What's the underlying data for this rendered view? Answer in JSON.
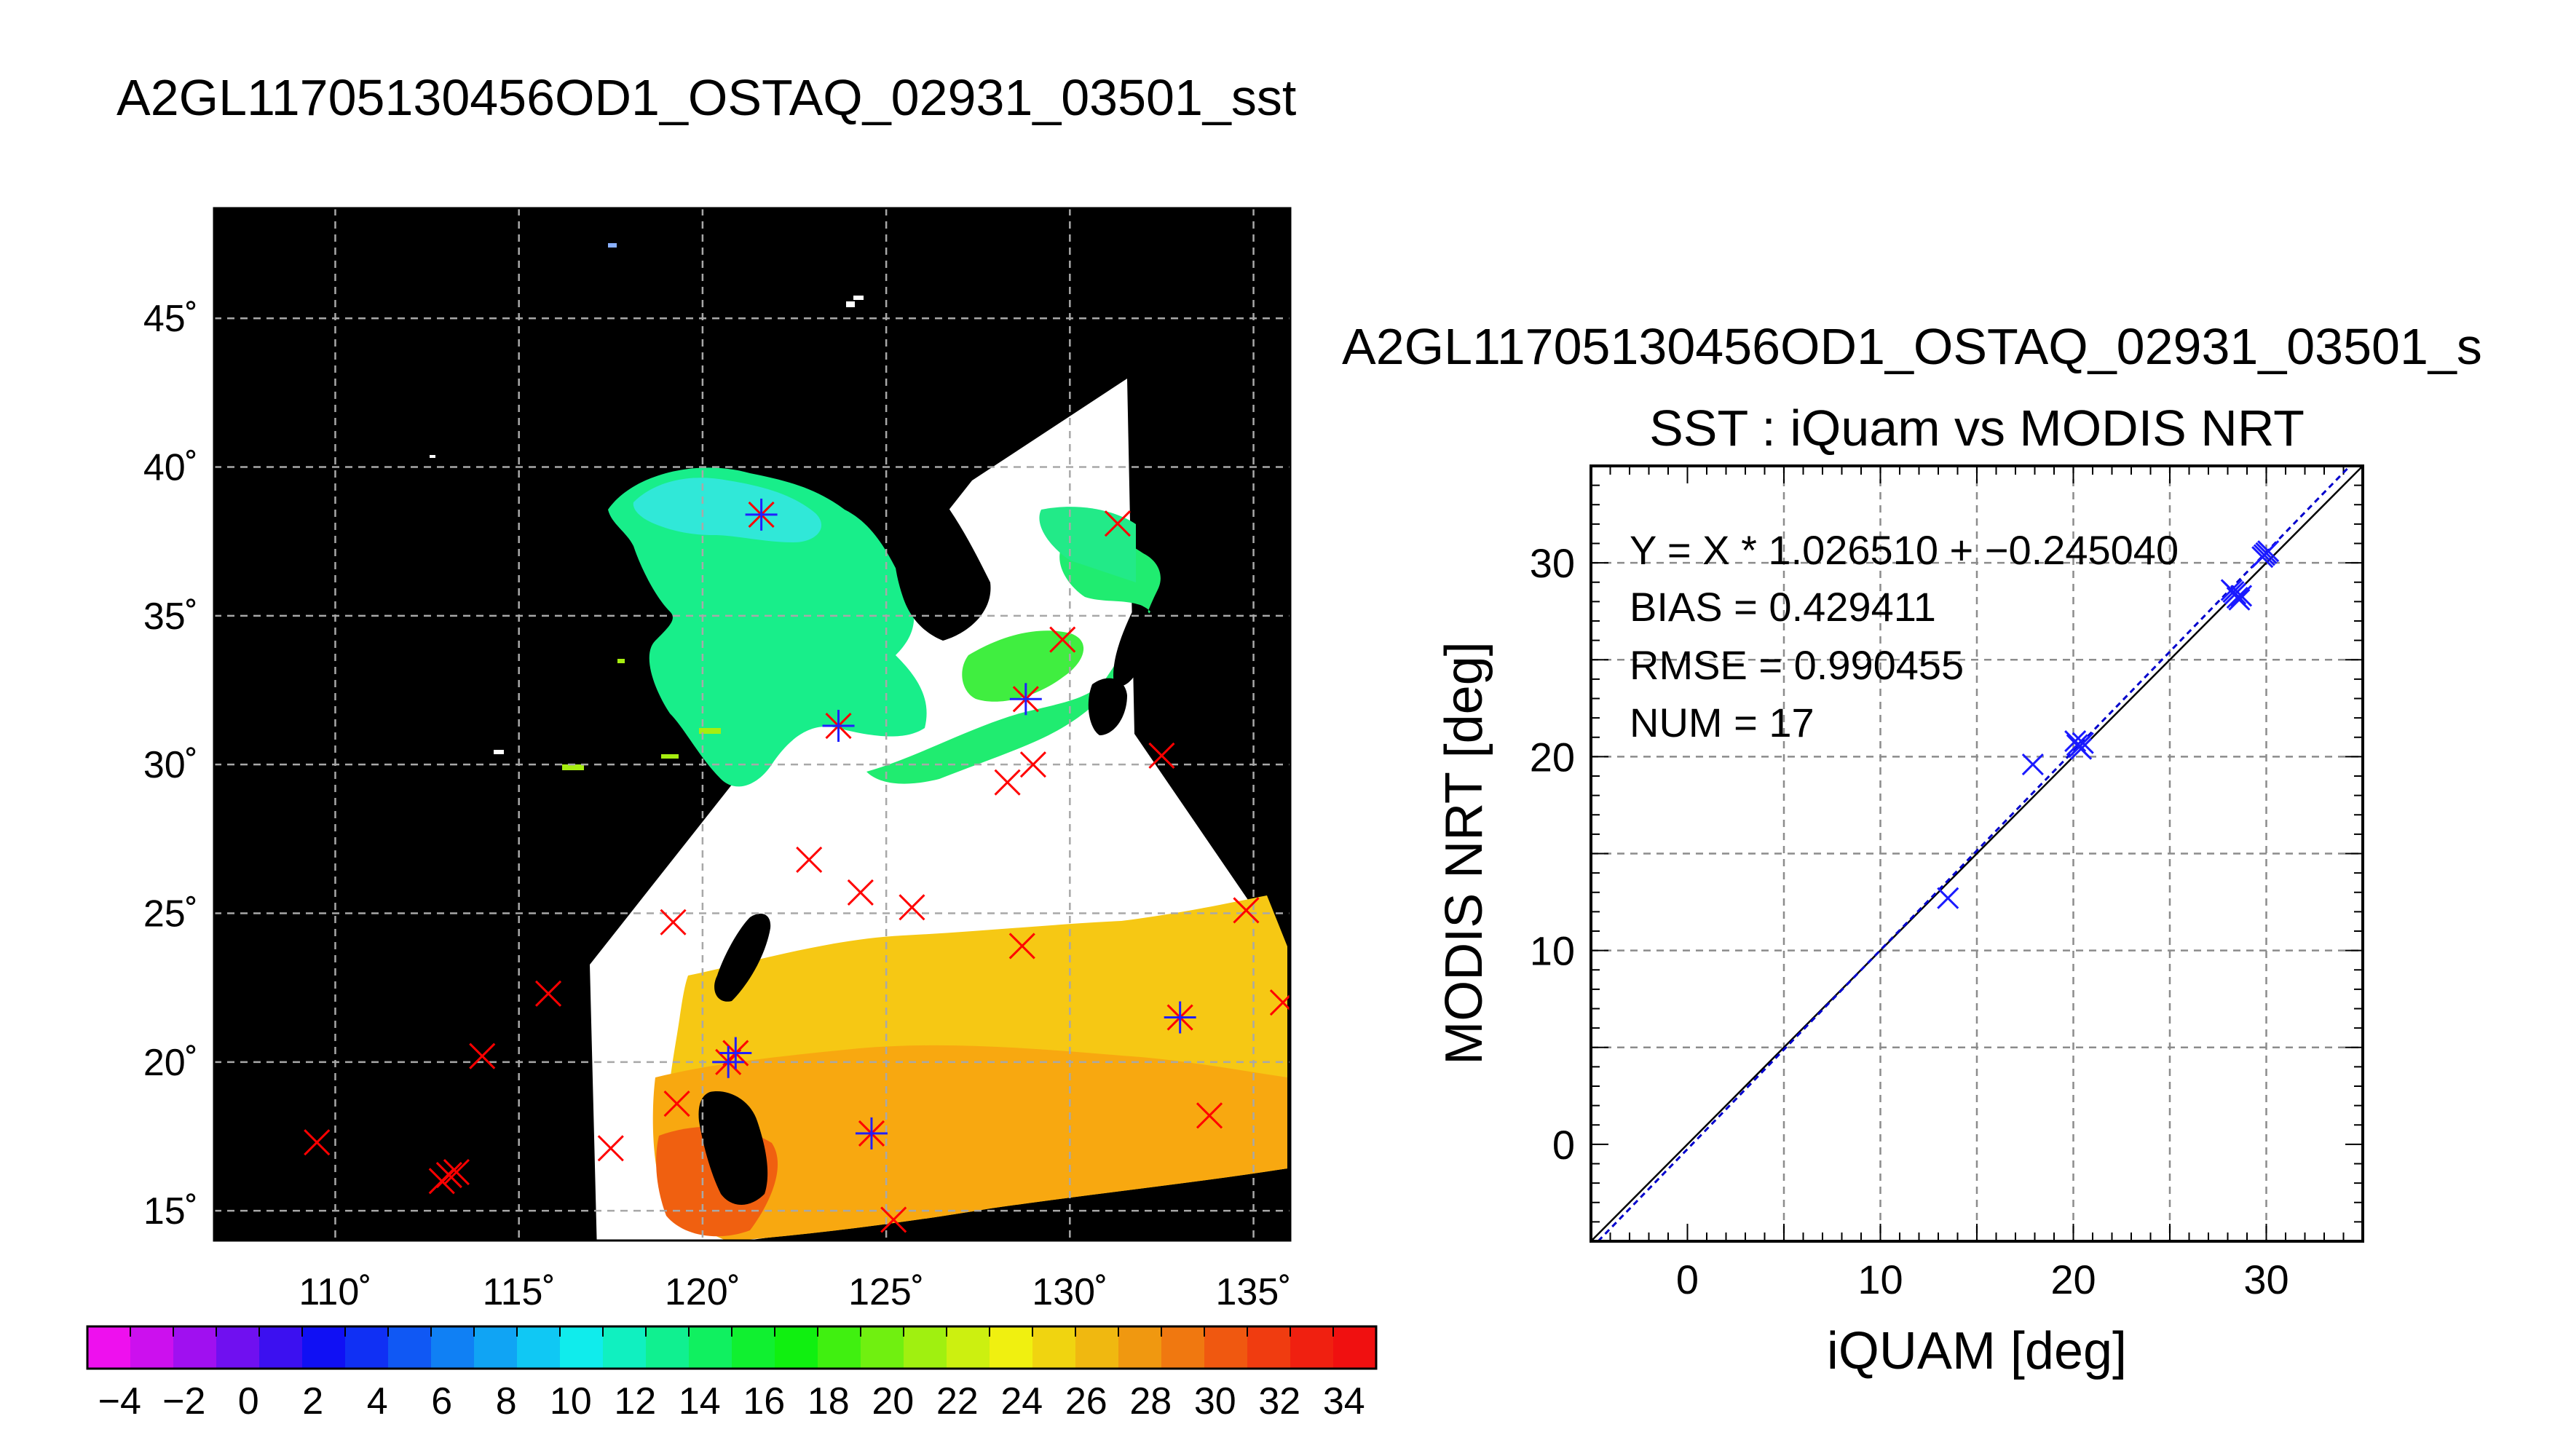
{
  "chart_data": [
    {
      "type": "map",
      "title": "A2GL11705130456OD1_OSTAQ_02931_03501_sst",
      "x_ticks": [
        {
          "value": 110,
          "label": "110˚"
        },
        {
          "value": 115,
          "label": "115˚"
        },
        {
          "value": 120,
          "label": "120˚"
        },
        {
          "value": 125,
          "label": "125˚"
        },
        {
          "value": 130,
          "label": "130˚"
        },
        {
          "value": 135,
          "label": "135˚"
        }
      ],
      "y_ticks": [
        {
          "value": 15,
          "label": "15˚"
        },
        {
          "value": 20,
          "label": "20˚"
        },
        {
          "value": 25,
          "label": "25˚"
        },
        {
          "value": 30,
          "label": "30˚"
        },
        {
          "value": 35,
          "label": "35˚"
        },
        {
          "value": 40,
          "label": "40˚"
        },
        {
          "value": 45,
          "label": "45˚"
        }
      ],
      "xlim": [
        106.7,
        136.0
      ],
      "ylim": [
        14.0,
        48.7
      ],
      "grid": true,
      "background_color": "#000000",
      "no_data_color": "#ffffff",
      "iquam_points_red": [
        [
          109.5,
          17.3
        ],
        [
          112.9,
          16.0
        ],
        [
          113.1,
          16.2
        ],
        [
          113.3,
          16.3
        ],
        [
          114.0,
          20.2
        ],
        [
          115.8,
          22.3
        ],
        [
          117.5,
          17.1
        ],
        [
          119.2,
          24.7
        ],
        [
          119.3,
          18.6
        ],
        [
          120.7,
          20.0
        ],
        [
          120.9,
          20.3
        ],
        [
          121.6,
          38.4
        ],
        [
          122.9,
          26.8
        ],
        [
          123.7,
          31.3
        ],
        [
          124.3,
          25.7
        ],
        [
          124.6,
          17.6
        ],
        [
          125.2,
          14.7
        ],
        [
          125.7,
          25.2
        ],
        [
          128.3,
          29.4
        ],
        [
          128.7,
          23.9
        ],
        [
          128.8,
          32.2
        ],
        [
          129.0,
          30.0
        ],
        [
          129.8,
          34.2
        ],
        [
          131.3,
          38.1
        ],
        [
          132.5,
          30.3
        ],
        [
          133.0,
          21.5
        ],
        [
          133.8,
          18.2
        ],
        [
          134.8,
          25.1
        ],
        [
          135.8,
          22.0
        ]
      ],
      "matched_points_blue": [
        [
          121.6,
          38.4
        ],
        [
          123.7,
          31.3
        ],
        [
          128.8,
          32.2
        ],
        [
          120.7,
          20.0
        ],
        [
          120.9,
          20.3
        ],
        [
          124.6,
          17.6
        ],
        [
          133.0,
          21.5
        ]
      ]
    },
    {
      "type": "colorbar",
      "vmin": -5,
      "vmax": 35,
      "tick_values": [
        -4,
        -2,
        0,
        2,
        4,
        6,
        8,
        10,
        12,
        14,
        16,
        18,
        20,
        22,
        24,
        26,
        28,
        30,
        32,
        34
      ],
      "tick_labels": [
        "−4",
        "−2",
        "0",
        "2",
        "4",
        "6",
        "8",
        "10",
        "12",
        "14",
        "16",
        "18",
        "20",
        "22",
        "24",
        "26",
        "28",
        "30",
        "32",
        "34"
      ],
      "colors": [
        "#ee10ee",
        "#cc10ee",
        "#a010f0",
        "#7010f0",
        "#3c10f0",
        "#1010f4",
        "#1030f4",
        "#1058f4",
        "#1080f4",
        "#10a4f4",
        "#10c8f4",
        "#10ecec",
        "#10f0c0",
        "#10f090",
        "#10f060",
        "#10f030",
        "#10f010",
        "#40f010",
        "#70f010",
        "#a0f010",
        "#ccf010",
        "#f0f010",
        "#f0d410",
        "#f0b810",
        "#f09810",
        "#f07810",
        "#f05810",
        "#f03c10",
        "#f02010",
        "#f01010"
      ]
    },
    {
      "type": "scatter",
      "title_top": "A2GL11705130456OD1_OSTAQ_02931_03501_s",
      "title": "SST : iQuam vs MODIS NRT",
      "xlabel": "iQUAM [deg]",
      "ylabel": "MODIS NRT [deg]",
      "xlim": [
        -5,
        35
      ],
      "ylim": [
        -5,
        35
      ],
      "x_ticks": [
        0,
        10,
        20,
        30
      ],
      "y_ticks": [
        0,
        10,
        20,
        30
      ],
      "grid": true,
      "points": [
        {
          "x": 13.5,
          "y": 12.7
        },
        {
          "x": 17.9,
          "y": 19.6
        },
        {
          "x": 20.1,
          "y": 20.8
        },
        {
          "x": 20.3,
          "y": 20.5
        },
        {
          "x": 20.5,
          "y": 20.7
        },
        {
          "x": 20.2,
          "y": 20.6
        },
        {
          "x": 28.3,
          "y": 28.5
        },
        {
          "x": 28.5,
          "y": 28.2
        },
        {
          "x": 28.6,
          "y": 28.1
        },
        {
          "x": 28.4,
          "y": 28.4
        },
        {
          "x": 29.9,
          "y": 30.4
        },
        {
          "x": 30.0,
          "y": 30.5
        },
        {
          "x": 29.8,
          "y": 30.3
        },
        {
          "x": 28.7,
          "y": 28.3
        },
        {
          "x": 20.4,
          "y": 20.4
        },
        {
          "x": 30.1,
          "y": 30.6
        },
        {
          "x": 28.2,
          "y": 28.6
        }
      ],
      "fit": {
        "slope": 1.02651,
        "intercept": -0.24504
      },
      "annotations": [
        "Y = X * 1.026510 + −0.245040",
        "BIAS = 0.429411",
        "RMSE = 0.990455",
        "NUM = 17"
      ],
      "point_color": "#1a1aff",
      "fit_color": "#0000cc"
    }
  ]
}
